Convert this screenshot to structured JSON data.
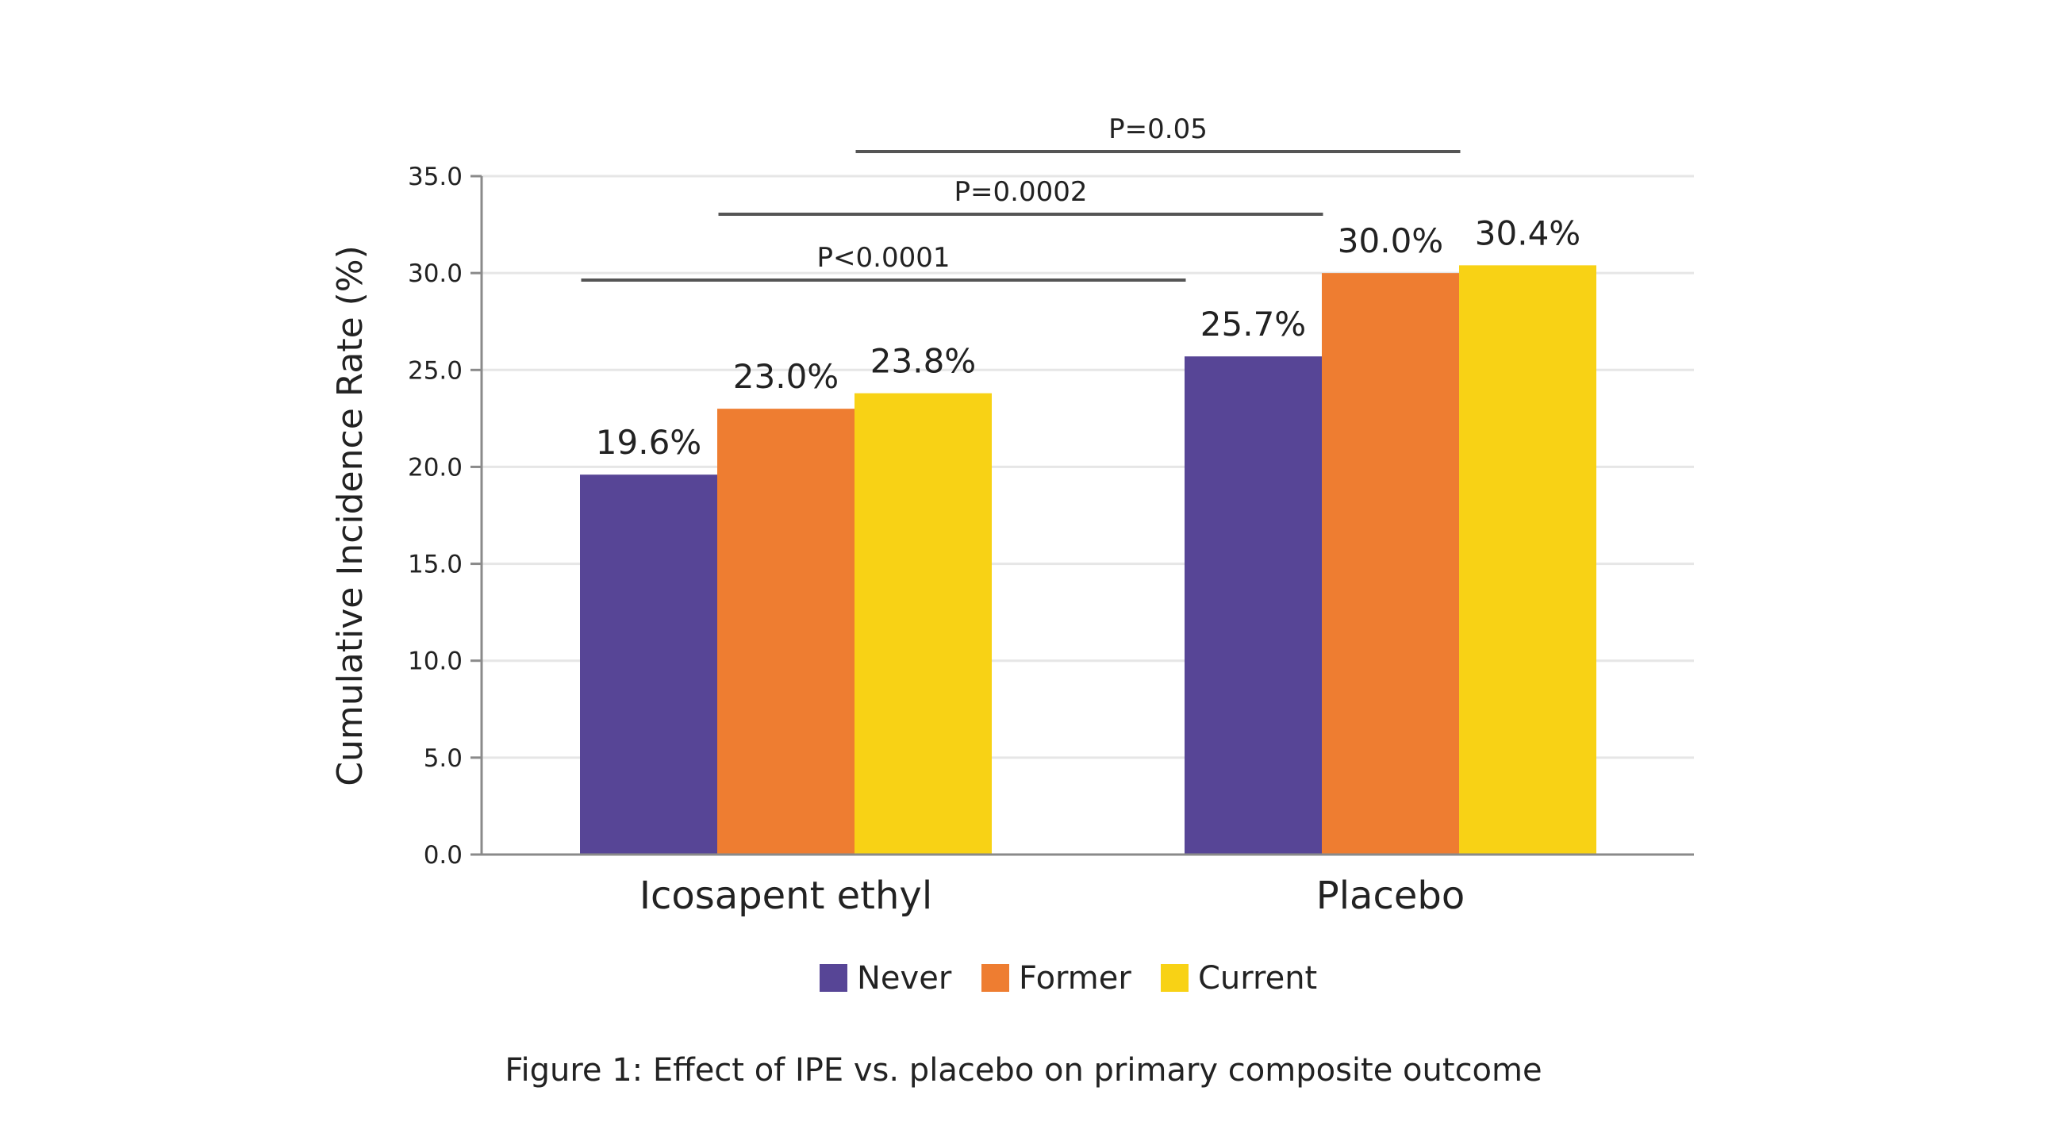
{
  "chart_data": {
    "type": "bar",
    "title": "",
    "caption": "Figure 1: Effect of IPE vs. placebo on primary composite outcome",
    "xlabel": "",
    "ylabel": "Cumulative Incidence Rate (%)",
    "ylim": [
      0,
      35
    ],
    "yticks": [
      "0.0",
      "5.0",
      "10.0",
      "15.0",
      "20.0",
      "25.0",
      "30.0",
      "35.0"
    ],
    "categories": [
      "Icosapent ethyl",
      "Placebo"
    ],
    "series": [
      {
        "name": "Never",
        "color": "#574596",
        "values": [
          19.6,
          25.7
        ],
        "labels": [
          "19.6%",
          "25.7%"
        ]
      },
      {
        "name": "Former",
        "color": "#ee7d31",
        "values": [
          23.0,
          30.0
        ],
        "labels": [
          "23.0%",
          "30.0%"
        ]
      },
      {
        "name": "Current",
        "color": "#f8d215",
        "values": [
          23.8,
          30.4
        ],
        "labels": [
          "23.8%",
          "30.4%"
        ]
      }
    ],
    "grid": true,
    "legend_position": "bottom",
    "significance_brackets": [
      {
        "label": "P<0.0001",
        "from": {
          "category": 0,
          "series": 0
        },
        "to": {
          "category": 1,
          "series": 0
        }
      },
      {
        "label": "P=0.0002",
        "from": {
          "category": 0,
          "series": 1
        },
        "to": {
          "category": 1,
          "series": 1
        }
      },
      {
        "label": "P=0.05",
        "from": {
          "category": 0,
          "series": 2
        },
        "to": {
          "category": 1,
          "series": 2
        }
      }
    ]
  }
}
